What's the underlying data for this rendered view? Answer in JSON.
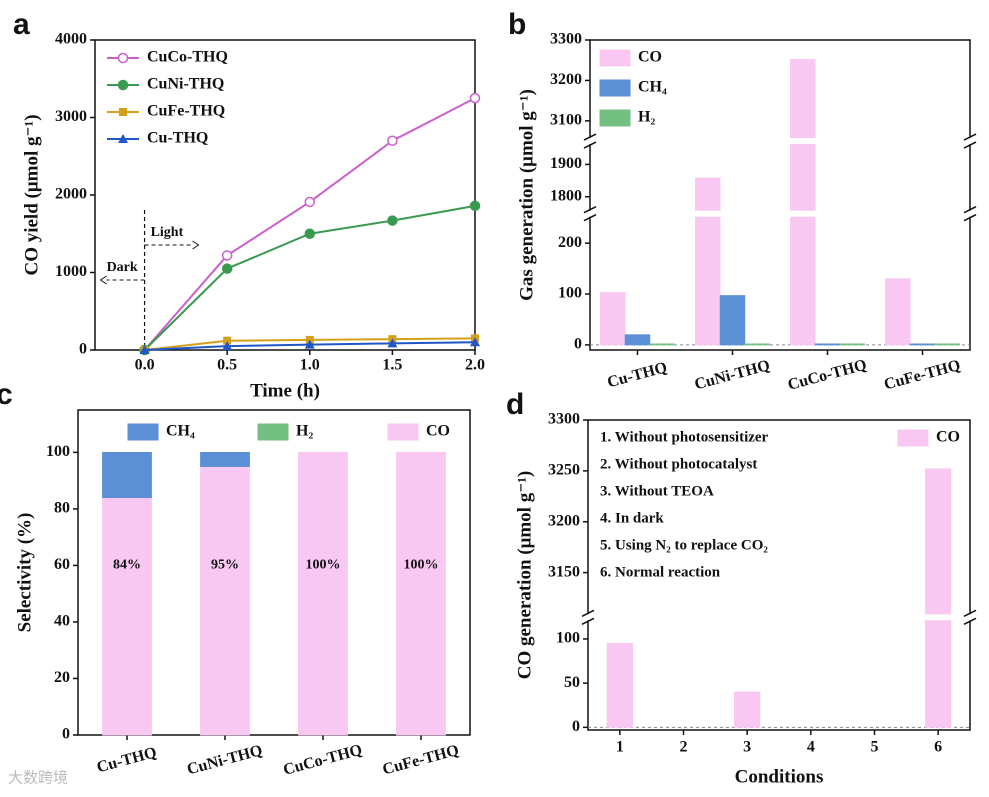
{
  "chart_data": [
    {
      "type": "line",
      "panel": "a",
      "x_label": "Time (h)",
      "y_label": "CO yield (μmol g⁻¹)",
      "x": [
        0,
        0.5,
        1.0,
        1.5,
        2.0
      ],
      "xlim": [
        -0.3,
        2.0
      ],
      "xticks": [
        {
          "value": 0,
          "label": "0.0"
        },
        0.5,
        {
          "value": 1,
          "label": "1.0"
        },
        1.5,
        {
          "value": 2,
          "label": "2.0"
        }
      ],
      "ylim": [
        0,
        4000
      ],
      "yticks": [
        0,
        1000,
        2000,
        3000,
        4000
      ],
      "legend": "upper left",
      "annotations": [
        "Light",
        "Dark"
      ],
      "series": [
        {
          "name": "CuCo-THQ",
          "color": "#cc5fcc",
          "marker": "circle-open",
          "values": [
            0,
            1220,
            1910,
            2700,
            3250
          ]
        },
        {
          "name": "CuNi-THQ",
          "color": "#3a9a50",
          "marker": "circle",
          "values": [
            0,
            1050,
            1500,
            1670,
            1860
          ]
        },
        {
          "name": "CuFe-THQ",
          "color": "#d4a017",
          "marker": "square",
          "values": [
            0,
            120,
            130,
            140,
            150
          ]
        },
        {
          "name": "Cu-THQ",
          "color": "#2156c8",
          "marker": "triangle",
          "values": [
            0,
            50,
            70,
            85,
            100
          ]
        }
      ]
    },
    {
      "type": "bar",
      "panel": "b",
      "y_label": "Gas generation (μmol g⁻¹)",
      "categories": [
        "Cu-THQ",
        "CuNi-THQ",
        "CuCo-THQ",
        "CuFe-THQ"
      ],
      "ylim": [
        -10,
        3300
      ],
      "ylim_segments": [
        [
          -10,
          250
        ],
        [
          1760,
          1960
        ],
        [
          3060,
          3300
        ]
      ],
      "yticks": [
        0,
        100,
        200,
        1800,
        1900,
        3100,
        3200,
        3300
      ],
      "legend": "upper left",
      "series": [
        {
          "name": "CO",
          "color": "#f8c8f3",
          "values": [
            103,
            1858,
            3252,
            130
          ]
        },
        {
          "name": "CH₄",
          "color": "#5b8fd6",
          "values": [
            20,
            97,
            2,
            2
          ]
        },
        {
          "name": "H₂",
          "color": "#74c083",
          "values": [
            2,
            2,
            2,
            2
          ]
        }
      ]
    },
    {
      "type": "stacked_bar",
      "panel": "c",
      "y_label": "Selectivity (%)",
      "categories": [
        "Cu-THQ",
        "CuNi-THQ",
        "CuCo-THQ",
        "CuFe-THQ"
      ],
      "ylim": [
        0,
        115
      ],
      "yticks": [
        0,
        20,
        40,
        60,
        80,
        100
      ],
      "legend": "upper center",
      "series": [
        {
          "name": "CO",
          "color": "#f8c8f3",
          "values": [
            84,
            95,
            100,
            100
          ],
          "value_labels": [
            "84%",
            "95%",
            "100%",
            "100%"
          ]
        },
        {
          "name": "CH₄",
          "color": "#5b8fd6",
          "values": [
            16,
            5,
            0,
            0
          ]
        },
        {
          "name": "H₂",
          "color": "#74c083",
          "values": [
            0,
            0,
            0,
            0
          ]
        }
      ]
    },
    {
      "type": "bar",
      "panel": "d",
      "x_label": "Conditions",
      "y_label": "CO generation (μmol g⁻¹)",
      "categories": [
        "1",
        "2",
        "3",
        "4",
        "5",
        "6"
      ],
      "ylim": [
        -3,
        3300
      ],
      "ylim_segments": [
        [
          -3,
          120
        ],
        [
          3110,
          3300
        ]
      ],
      "yticks": [
        0,
        50,
        100,
        3150,
        3200,
        3250,
        3300
      ],
      "legend": "upper right",
      "annotations": [
        "1. Without photosensitizer",
        "2. Without photocatalyst",
        "3. Without TEOA",
        "4. In dark",
        "5. Using N₂ to replace CO₂",
        "6. Normal reaction"
      ],
      "series": [
        {
          "name": "CO",
          "color": "#f8c8f3",
          "values": [
            95,
            0,
            40,
            0,
            0,
            3252
          ]
        }
      ]
    }
  ],
  "watermark": "大数跨境"
}
